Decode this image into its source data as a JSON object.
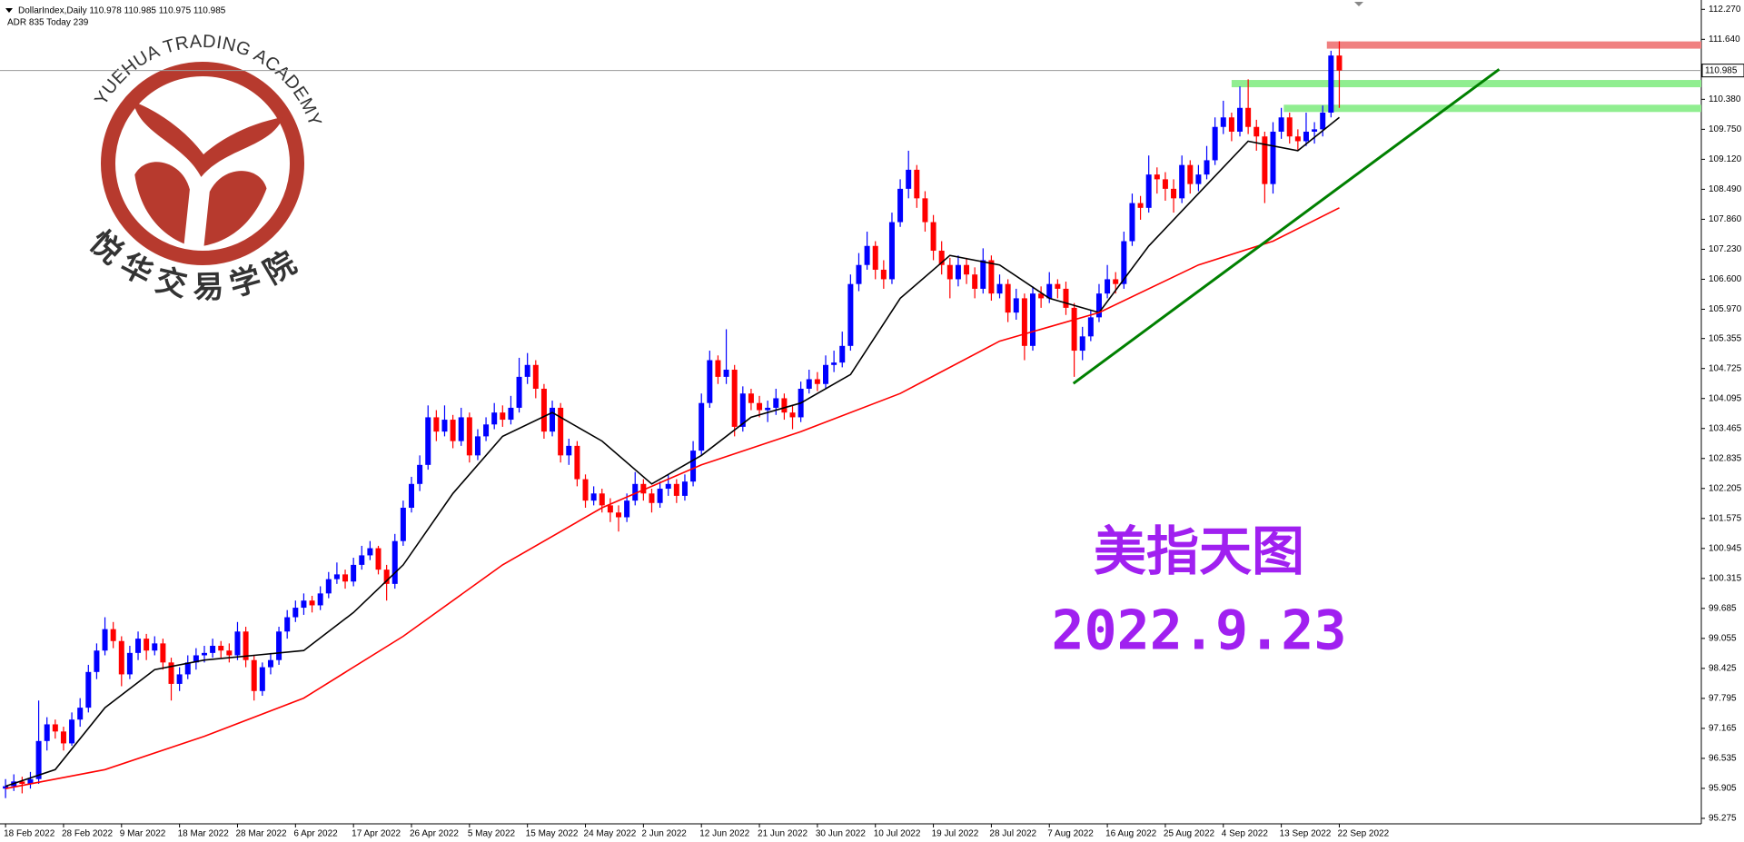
{
  "chart_data": {
    "type": "candlestick",
    "header": "DollarIndex,Daily  110.978 110.985 110.975 110.985",
    "indicator_text": "ADR 835  Today 239",
    "logo_text_en": "YUEHUA TRADING ACADEMY",
    "logo_text_cn": "悦华交易学院",
    "annotations": [
      "美指天图",
      "2022.9.23"
    ],
    "up_color": "#0000ff",
    "down_color": "#ff0000",
    "grid": false,
    "xlim": [
      -0.67,
      204.7
    ],
    "ylim": [
      95.16,
      112.39
    ],
    "yticks": [
      {
        "value": 112.27,
        "label": "112.270"
      },
      {
        "value": 111.64,
        "label": "111.640"
      },
      {
        "value": 110.38,
        "label": "110.380"
      },
      {
        "value": 109.75,
        "label": "109.750"
      },
      {
        "value": 109.12,
        "label": "109.120"
      },
      {
        "value": 108.49,
        "label": "108.490"
      },
      {
        "value": 107.86,
        "label": "107.860"
      },
      {
        "value": 107.23,
        "label": "107.230"
      },
      {
        "value": 106.6,
        "label": "106.600"
      },
      {
        "value": 105.97,
        "label": "105.970"
      },
      105.355,
      104.725,
      104.095,
      103.465,
      102.835,
      102.205,
      101.575,
      100.945,
      100.315,
      99.685,
      99.055,
      98.425,
      97.795,
      97.165,
      96.535,
      95.905,
      95.275
    ],
    "last_price": 110.985,
    "categories": [
      "18 Feb 2022",
      null,
      null,
      null,
      null,
      null,
      null,
      "28 Feb 2022",
      null,
      null,
      null,
      null,
      null,
      null,
      "9 Mar 2022",
      null,
      null,
      null,
      null,
      null,
      null,
      "18 Mar 2022",
      null,
      null,
      null,
      null,
      null,
      null,
      "28 Mar 2022",
      null,
      null,
      null,
      null,
      null,
      null,
      "6 Apr 2022",
      null,
      null,
      null,
      null,
      null,
      null,
      "17 Apr 2022",
      null,
      null,
      null,
      null,
      null,
      null,
      "26 Apr 2022",
      null,
      null,
      null,
      null,
      null,
      null,
      "5 May 2022",
      null,
      null,
      null,
      null,
      null,
      null,
      "15 May 2022",
      null,
      null,
      null,
      null,
      null,
      null,
      "24 May 2022",
      null,
      null,
      null,
      null,
      null,
      null,
      "2 Jun 2022",
      null,
      null,
      null,
      null,
      null,
      null,
      "12 Jun 2022",
      null,
      null,
      null,
      null,
      null,
      null,
      "21 Jun 2022",
      null,
      null,
      null,
      null,
      null,
      null,
      "30 Jun 2022",
      null,
      null,
      null,
      null,
      null,
      null,
      "10 Jul 2022",
      null,
      null,
      null,
      null,
      null,
      null,
      "19 Jul 2022",
      null,
      null,
      null,
      null,
      null,
      null,
      "28 Jul 2022",
      null,
      null,
      null,
      null,
      null,
      null,
      "7 Aug 2022",
      null,
      null,
      null,
      null,
      null,
      null,
      "16 Aug 2022",
      null,
      null,
      null,
      null,
      null,
      null,
      "25 Aug 2022",
      null,
      null,
      null,
      null,
      null,
      null,
      "4 Sep 2022",
      null,
      null,
      null,
      null,
      null,
      null,
      "13 Sep 2022",
      null,
      null,
      null,
      null,
      null,
      null,
      "22 Sep 2022"
    ],
    "candles": [
      [
        95.9,
        96.1,
        95.7,
        95.95
      ],
      [
        95.95,
        96.2,
        95.85,
        96.05
      ],
      [
        96.05,
        96.15,
        95.8,
        96.0
      ],
      [
        96.0,
        96.25,
        95.9,
        96.1
      ],
      [
        96.1,
        97.75,
        96.0,
        96.9
      ],
      [
        96.9,
        97.4,
        96.7,
        97.25
      ],
      [
        97.25,
        97.35,
        96.95,
        97.1
      ],
      [
        97.1,
        97.2,
        96.7,
        96.85
      ],
      [
        96.85,
        97.5,
        96.8,
        97.35
      ],
      [
        97.35,
        97.8,
        97.2,
        97.6
      ],
      [
        97.6,
        98.5,
        97.5,
        98.35
      ],
      [
        98.35,
        98.95,
        98.2,
        98.8
      ],
      [
        98.8,
        99.5,
        98.7,
        99.25
      ],
      [
        99.25,
        99.4,
        98.85,
        99.0
      ],
      [
        99.0,
        99.1,
        98.05,
        98.3
      ],
      [
        98.3,
        98.9,
        98.2,
        98.75
      ],
      [
        98.75,
        99.2,
        98.6,
        99.05
      ],
      [
        99.05,
        99.15,
        98.6,
        98.8
      ],
      [
        98.8,
        99.1,
        98.7,
        98.95
      ],
      [
        98.95,
        99.05,
        98.4,
        98.55
      ],
      [
        98.55,
        98.65,
        97.75,
        98.1
      ],
      [
        98.1,
        98.45,
        97.95,
        98.3
      ],
      [
        98.3,
        98.7,
        98.2,
        98.55
      ],
      [
        98.55,
        98.85,
        98.4,
        98.7
      ],
      [
        98.7,
        98.9,
        98.55,
        98.75
      ],
      [
        98.75,
        99.05,
        98.65,
        98.9
      ],
      [
        98.9,
        99.0,
        98.65,
        98.8
      ],
      [
        98.8,
        98.95,
        98.55,
        98.7
      ],
      [
        98.7,
        99.4,
        98.6,
        99.2
      ],
      [
        99.2,
        99.3,
        98.45,
        98.6
      ],
      [
        98.6,
        98.7,
        97.75,
        97.95
      ],
      [
        97.95,
        98.55,
        97.85,
        98.45
      ],
      [
        98.45,
        98.75,
        98.3,
        98.6
      ],
      [
        98.6,
        99.3,
        98.5,
        99.2
      ],
      [
        99.2,
        99.65,
        99.05,
        99.5
      ],
      [
        99.5,
        99.85,
        99.4,
        99.7
      ],
      [
        99.7,
        100.0,
        99.55,
        99.85
      ],
      [
        99.85,
        99.95,
        99.6,
        99.75
      ],
      [
        99.75,
        100.15,
        99.65,
        100.0
      ],
      [
        100.0,
        100.45,
        99.9,
        100.3
      ],
      [
        100.3,
        100.65,
        100.2,
        100.4
      ],
      [
        100.4,
        100.5,
        100.1,
        100.25
      ],
      [
        100.25,
        100.75,
        100.15,
        100.6
      ],
      [
        100.6,
        101.0,
        100.5,
        100.8
      ],
      [
        100.8,
        101.1,
        100.7,
        100.95
      ],
      [
        100.95,
        101.0,
        100.4,
        100.5
      ],
      [
        100.5,
        100.6,
        99.85,
        100.2
      ],
      [
        100.2,
        101.25,
        100.1,
        101.1
      ],
      [
        101.1,
        101.95,
        101.0,
        101.8
      ],
      [
        101.8,
        102.45,
        101.7,
        102.3
      ],
      [
        102.3,
        102.9,
        102.15,
        102.7
      ],
      [
        102.7,
        103.95,
        102.6,
        103.7
      ],
      [
        103.7,
        103.85,
        103.2,
        103.4
      ],
      [
        103.4,
        103.95,
        103.3,
        103.65
      ],
      [
        103.65,
        103.75,
        103.05,
        103.2
      ],
      [
        103.2,
        103.9,
        103.1,
        103.7
      ],
      [
        103.7,
        103.8,
        102.75,
        102.9
      ],
      [
        102.9,
        103.45,
        102.8,
        103.3
      ],
      [
        103.3,
        103.7,
        103.2,
        103.55
      ],
      [
        103.55,
        104.0,
        103.45,
        103.8
      ],
      [
        103.8,
        103.95,
        103.5,
        103.65
      ],
      [
        103.65,
        104.15,
        103.55,
        103.9
      ],
      [
        103.9,
        104.95,
        103.8,
        104.55
      ],
      [
        104.55,
        105.05,
        104.4,
        104.8
      ],
      [
        104.8,
        104.9,
        104.1,
        104.3
      ],
      [
        104.3,
        104.4,
        103.25,
        103.4
      ],
      [
        103.4,
        104.05,
        103.3,
        103.9
      ],
      [
        103.9,
        104.0,
        102.75,
        102.9
      ],
      [
        102.9,
        103.25,
        102.7,
        103.1
      ],
      [
        103.1,
        103.2,
        102.25,
        102.4
      ],
      [
        102.4,
        102.5,
        101.8,
        101.95
      ],
      [
        101.95,
        102.25,
        101.85,
        102.1
      ],
      [
        102.1,
        102.2,
        101.7,
        101.85
      ],
      [
        101.85,
        102.0,
        101.5,
        101.7
      ],
      [
        101.7,
        101.85,
        101.3,
        101.6
      ],
      [
        101.6,
        102.1,
        101.5,
        101.95
      ],
      [
        101.95,
        102.55,
        101.85,
        102.3
      ],
      [
        102.3,
        102.4,
        101.95,
        102.1
      ],
      [
        102.1,
        102.2,
        101.7,
        101.9
      ],
      [
        101.9,
        102.35,
        101.8,
        102.2
      ],
      [
        102.2,
        102.5,
        102.05,
        102.3
      ],
      [
        102.3,
        102.4,
        101.9,
        102.05
      ],
      [
        102.05,
        102.5,
        101.95,
        102.35
      ],
      [
        102.35,
        103.2,
        102.25,
        103.0
      ],
      [
        103.0,
        104.2,
        102.9,
        104.0
      ],
      [
        104.0,
        105.1,
        103.9,
        104.9
      ],
      [
        104.9,
        105.0,
        104.4,
        104.55
      ],
      [
        104.55,
        105.55,
        104.4,
        104.7
      ],
      [
        104.7,
        104.8,
        103.3,
        103.5
      ],
      [
        103.5,
        104.35,
        103.4,
        104.2
      ],
      [
        104.2,
        104.3,
        103.85,
        104.0
      ],
      [
        104.0,
        104.15,
        103.7,
        103.85
      ],
      [
        103.85,
        104.05,
        103.6,
        103.9
      ],
      [
        103.9,
        104.3,
        103.75,
        104.1
      ],
      [
        104.1,
        104.2,
        103.65,
        103.8
      ],
      [
        103.8,
        103.95,
        103.45,
        103.7
      ],
      [
        103.7,
        104.45,
        103.6,
        104.3
      ],
      [
        104.3,
        104.7,
        104.2,
        104.5
      ],
      [
        104.5,
        104.65,
        104.25,
        104.4
      ],
      [
        104.4,
        105.0,
        104.3,
        104.8
      ],
      [
        104.8,
        105.1,
        104.65,
        104.85
      ],
      [
        104.85,
        105.5,
        104.75,
        105.2
      ],
      [
        105.2,
        106.7,
        105.1,
        106.5
      ],
      [
        106.5,
        107.15,
        106.35,
        106.9
      ],
      [
        106.9,
        107.6,
        106.8,
        107.3
      ],
      [
        107.3,
        107.4,
        106.6,
        106.8
      ],
      [
        106.8,
        107.0,
        106.4,
        106.6
      ],
      [
        106.6,
        108.0,
        106.5,
        107.8
      ],
      [
        107.8,
        108.7,
        107.7,
        108.5
      ],
      [
        108.5,
        109.3,
        108.3,
        108.9
      ],
      [
        108.9,
        109.0,
        108.1,
        108.3
      ],
      [
        108.3,
        108.45,
        107.6,
        107.8
      ],
      [
        107.8,
        107.95,
        107.0,
        107.2
      ],
      [
        107.2,
        107.4,
        106.7,
        106.9
      ],
      [
        106.9,
        107.05,
        106.2,
        106.6
      ],
      [
        106.6,
        107.1,
        106.45,
        106.9
      ],
      [
        106.9,
        107.05,
        106.5,
        106.7
      ],
      [
        106.7,
        106.85,
        106.2,
        106.4
      ],
      [
        106.4,
        107.25,
        106.3,
        107.0
      ],
      [
        107.0,
        107.1,
        106.15,
        106.3
      ],
      [
        106.3,
        106.7,
        106.2,
        106.5
      ],
      [
        106.5,
        106.6,
        105.7,
        105.9
      ],
      [
        105.9,
        106.4,
        105.75,
        106.2
      ],
      [
        106.2,
        106.3,
        104.9,
        105.2
      ],
      [
        105.2,
        106.45,
        105.1,
        106.3
      ],
      [
        106.3,
        106.45,
        106.0,
        106.2
      ],
      [
        106.2,
        106.75,
        106.1,
        106.5
      ],
      [
        106.5,
        106.6,
        106.2,
        106.4
      ],
      [
        106.4,
        106.55,
        105.85,
        106.0
      ],
      [
        106.0,
        106.1,
        104.55,
        105.1
      ],
      [
        105.1,
        105.6,
        104.9,
        105.4
      ],
      [
        105.4,
        105.95,
        105.3,
        105.8
      ],
      [
        105.8,
        106.5,
        105.7,
        106.3
      ],
      [
        106.3,
        106.9,
        106.2,
        106.6
      ],
      [
        106.6,
        106.75,
        106.3,
        106.5
      ],
      [
        106.5,
        107.6,
        106.4,
        107.4
      ],
      [
        107.4,
        108.4,
        107.3,
        108.2
      ],
      [
        108.2,
        108.35,
        107.85,
        108.1
      ],
      [
        108.1,
        109.2,
        108.0,
        108.8
      ],
      [
        108.8,
        108.95,
        108.4,
        108.7
      ],
      [
        108.7,
        108.85,
        108.25,
        108.5
      ],
      [
        108.5,
        108.7,
        108.0,
        108.3
      ],
      [
        108.3,
        109.2,
        108.2,
        109.0
      ],
      [
        109.0,
        109.1,
        108.4,
        108.6
      ],
      [
        108.6,
        109.0,
        108.45,
        108.8
      ],
      [
        108.8,
        109.4,
        108.7,
        109.1
      ],
      [
        109.1,
        110.0,
        109.0,
        109.8
      ],
      [
        109.8,
        110.35,
        109.65,
        110.0
      ],
      [
        110.0,
        110.1,
        109.5,
        109.7
      ],
      [
        109.7,
        110.65,
        109.6,
        110.2
      ],
      [
        110.2,
        110.8,
        109.65,
        109.8
      ],
      [
        109.8,
        109.95,
        109.3,
        109.6
      ],
      [
        109.6,
        109.7,
        108.2,
        108.6
      ],
      [
        108.6,
        109.9,
        108.4,
        109.7
      ],
      [
        109.7,
        110.2,
        109.55,
        110.0
      ],
      [
        110.0,
        110.1,
        109.45,
        109.6
      ],
      [
        109.6,
        109.75,
        109.3,
        109.5
      ],
      [
        109.5,
        110.1,
        109.4,
        109.7
      ],
      [
        109.7,
        109.9,
        109.45,
        109.75
      ],
      [
        109.75,
        110.25,
        109.6,
        110.1
      ],
      [
        110.1,
        111.4,
        110.0,
        111.3
      ],
      [
        111.3,
        111.6,
        110.2,
        110.985
      ]
    ],
    "moving_averages": [
      {
        "color": "#000000",
        "x": [
          0,
          6,
          12,
          18,
          24,
          30,
          36,
          42,
          48,
          54,
          60,
          66,
          72,
          78,
          84,
          90,
          96,
          102,
          108,
          114,
          120,
          126,
          132,
          138,
          144,
          150,
          156,
          161
        ],
        "values": [
          95.95,
          96.3,
          97.6,
          98.4,
          98.6,
          98.7,
          98.8,
          99.6,
          100.6,
          102.1,
          103.3,
          103.8,
          103.2,
          102.3,
          102.9,
          103.7,
          104.0,
          104.6,
          106.2,
          107.1,
          106.9,
          106.2,
          105.9,
          107.3,
          108.4,
          109.5,
          109.3,
          110.0
        ]
      },
      {
        "color": "#ff0000",
        "x": [
          0,
          12,
          24,
          36,
          48,
          60,
          72,
          84,
          96,
          108,
          120,
          132,
          144,
          153,
          161
        ],
        "values": [
          95.9,
          96.3,
          97.0,
          97.8,
          99.1,
          100.6,
          101.8,
          102.7,
          103.4,
          104.2,
          105.3,
          105.9,
          106.9,
          107.4,
          108.1
        ]
      }
    ],
    "trendlines": [
      {
        "color": "#008000",
        "x": [
          128.9,
          180.3
        ],
        "values": [
          104.41,
          111.01
        ]
      }
    ],
    "zones": [
      {
        "color": "#f08080",
        "value": 111.52,
        "x_start": 159.5
      },
      {
        "color": "#90ee90",
        "value": 110.71,
        "x_start": 148.0
      },
      {
        "color": "#90ee90",
        "value": 110.19,
        "x_start": 154.3
      }
    ]
  }
}
